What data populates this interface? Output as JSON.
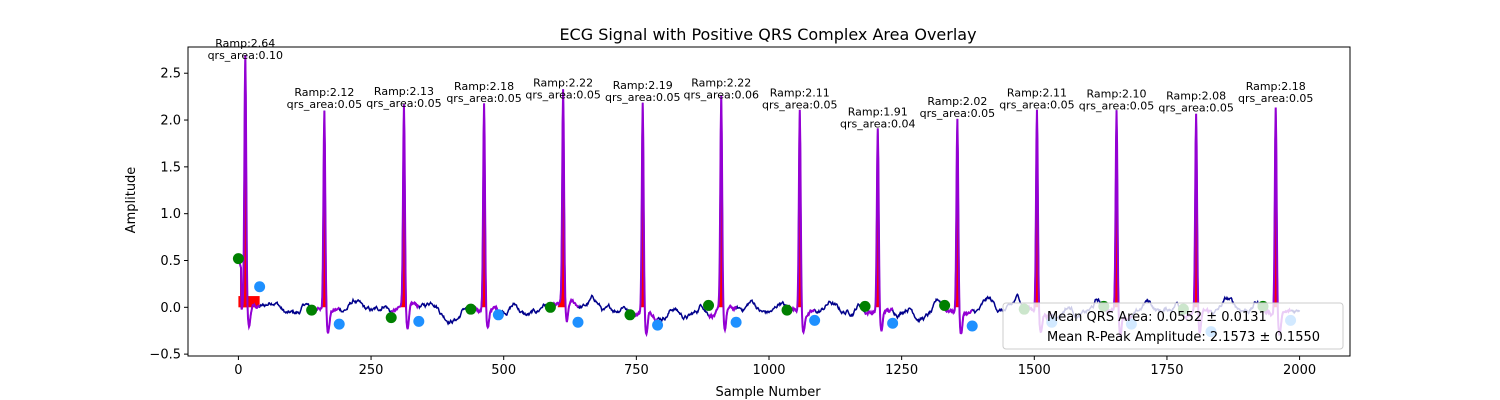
{
  "chart_data": {
    "type": "line",
    "title": "ECG Signal with Positive QRS Complex Area Overlay",
    "xlabel": "Sample Number",
    "ylabel": "Amplitude",
    "xlim": [
      -95,
      2095
    ],
    "ylim": [
      -0.52,
      2.78
    ],
    "xticks": [
      0,
      250,
      500,
      750,
      1000,
      1250,
      1500,
      1750,
      2000
    ],
    "yticks": [
      -0.5,
      0.0,
      0.5,
      1.0,
      1.5,
      2.0,
      2.5
    ],
    "xtick_labels": [
      "0",
      "250",
      "500",
      "750",
      "1000",
      "1250",
      "1500",
      "1750",
      "2000"
    ],
    "ytick_labels": [
      "−0.5",
      "0.0",
      "0.5",
      "1.0",
      "1.5",
      "2.0",
      "2.5"
    ],
    "grid": false,
    "colors": {
      "signal": "#00008b",
      "qrs_segment": "#9400d3",
      "qrs_fill": "#ff0000",
      "onset_marker": "#008000",
      "offset_marker": "#1e90ff"
    },
    "beats": [
      {
        "r_peak_x": 13,
        "r_amp": 2.64,
        "qrs_area": 0.1,
        "label_ramp": "Ramp:2.64",
        "label_area": "qrs_area:0.10",
        "onset_x": 0,
        "onset_y": 0.52,
        "offset_x": 40,
        "offset_y": 0.22
      },
      {
        "r_peak_x": 162,
        "r_amp": 2.12,
        "qrs_area": 0.05,
        "label_ramp": "Ramp:2.12",
        "label_area": "qrs_area:0.05",
        "onset_x": 138,
        "onset_y": -0.03,
        "offset_x": 190,
        "offset_y": -0.18
      },
      {
        "r_peak_x": 312,
        "r_amp": 2.13,
        "qrs_area": 0.05,
        "label_ramp": "Ramp:2.13",
        "label_area": "qrs_area:0.05",
        "onset_x": 288,
        "onset_y": -0.11,
        "offset_x": 340,
        "offset_y": -0.15
      },
      {
        "r_peak_x": 463,
        "r_amp": 2.18,
        "qrs_area": 0.05,
        "label_ramp": "Ramp:2.18",
        "label_area": "qrs_area:0.05",
        "onset_x": 438,
        "onset_y": -0.02,
        "offset_x": 490,
        "offset_y": -0.08
      },
      {
        "r_peak_x": 612,
        "r_amp": 2.22,
        "qrs_area": 0.05,
        "label_ramp": "Ramp:2.22",
        "label_area": "qrs_area:0.05",
        "onset_x": 588,
        "onset_y": 0.0,
        "offset_x": 640,
        "offset_y": -0.16
      },
      {
        "r_peak_x": 762,
        "r_amp": 2.19,
        "qrs_area": 0.05,
        "label_ramp": "Ramp:2.19",
        "label_area": "qrs_area:0.05",
        "onset_x": 738,
        "onset_y": -0.08,
        "offset_x": 790,
        "offset_y": -0.19
      },
      {
        "r_peak_x": 910,
        "r_amp": 2.22,
        "qrs_area": 0.06,
        "label_ramp": "Ramp:2.22",
        "label_area": "qrs_area:0.06",
        "onset_x": 886,
        "onset_y": 0.02,
        "offset_x": 938,
        "offset_y": -0.16
      },
      {
        "r_peak_x": 1058,
        "r_amp": 2.11,
        "qrs_area": 0.05,
        "label_ramp": "Ramp:2.11",
        "label_area": "qrs_area:0.05",
        "onset_x": 1034,
        "onset_y": -0.03,
        "offset_x": 1086,
        "offset_y": -0.14
      },
      {
        "r_peak_x": 1205,
        "r_amp": 1.91,
        "qrs_area": 0.04,
        "label_ramp": "Ramp:1.91",
        "label_area": "qrs_area:0.04",
        "onset_x": 1181,
        "onset_y": 0.01,
        "offset_x": 1233,
        "offset_y": -0.17
      },
      {
        "r_peak_x": 1355,
        "r_amp": 2.02,
        "qrs_area": 0.05,
        "label_ramp": "Ramp:2.02",
        "label_area": "qrs_area:0.05",
        "onset_x": 1331,
        "onset_y": 0.02,
        "offset_x": 1383,
        "offset_y": -0.2
      },
      {
        "r_peak_x": 1505,
        "r_amp": 2.11,
        "qrs_area": 0.05,
        "label_ramp": "Ramp:2.11",
        "label_area": "qrs_area:0.05",
        "onset_x": 1481,
        "onset_y": -0.02,
        "offset_x": 1533,
        "offset_y": -0.16
      },
      {
        "r_peak_x": 1655,
        "r_amp": 2.1,
        "qrs_area": 0.05,
        "label_ramp": "Ramp:2.10",
        "label_area": "qrs_area:0.05",
        "onset_x": 1631,
        "onset_y": 0.01,
        "offset_x": 1683,
        "offset_y": -0.18
      },
      {
        "r_peak_x": 1805,
        "r_amp": 2.08,
        "qrs_area": 0.05,
        "label_ramp": "Ramp:2.08",
        "label_area": "qrs_area:0.05",
        "onset_x": 1781,
        "onset_y": -0.02,
        "offset_x": 1833,
        "offset_y": -0.26
      },
      {
        "r_peak_x": 1955,
        "r_amp": 2.18,
        "qrs_area": 0.05,
        "label_ramp": "Ramp:2.18",
        "label_area": "qrs_area:0.05",
        "onset_x": 1931,
        "onset_y": 0.01,
        "offset_x": 1983,
        "offset_y": -0.14
      }
    ],
    "signal_end_x": 2000,
    "legend": {
      "placement": "lower-right",
      "entries": [
        "Mean QRS Area: 0.0552 ± 0.0131",
        "Mean R-Peak Amplitude: 2.1573 ± 0.1550"
      ]
    }
  }
}
